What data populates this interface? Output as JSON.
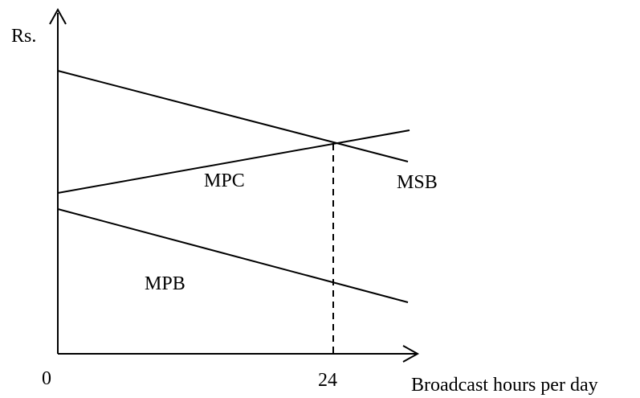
{
  "chart_data": {
    "type": "line",
    "title": "",
    "ylabel": "Rs.",
    "xlabel": "Broadcast hours per day",
    "x_ticks": [
      "0",
      "24"
    ],
    "xlim": [
      0,
      24
    ],
    "series": [
      {
        "name": "MSB",
        "x": [
          0,
          24
        ],
        "y": [
          1.0,
          0.46
        ]
      },
      {
        "name": "MPC",
        "x": [
          0,
          24
        ],
        "y": [
          0.18,
          0.55
        ]
      },
      {
        "name": "MPB",
        "x": [
          0,
          24
        ],
        "y": [
          0.1,
          -0.33
        ]
      }
    ],
    "intersection_x": 24,
    "marker": "dashed vertical line at x = 24",
    "grid": false
  }
}
